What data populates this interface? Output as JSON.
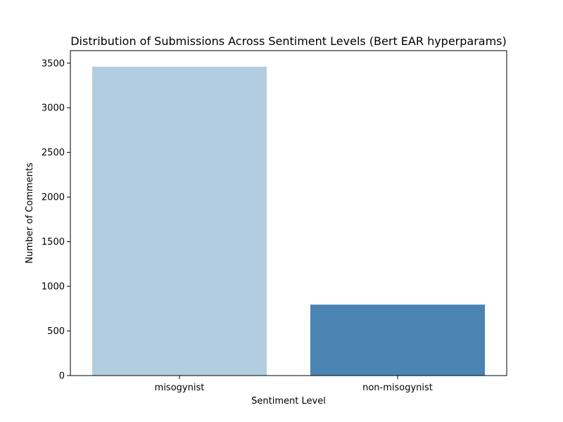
{
  "chart_data": {
    "type": "bar",
    "title": "Distribution of Submissions Across Sentiment Levels (Bert EAR hyperparams)",
    "xlabel": "Sentiment Level",
    "ylabel": "Number of Comments",
    "categories": [
      "misogynist",
      "non-misogynist"
    ],
    "values": [
      3460,
      795
    ],
    "colors": [
      "#b3cde0",
      "#4a84b3"
    ],
    "ylim": [
      0,
      3640
    ],
    "yticks": [
      0,
      500,
      1000,
      1500,
      2000,
      2500,
      3000,
      3500
    ],
    "ytick_labels": [
      "0",
      "500",
      "1000",
      "1500",
      "2000",
      "2500",
      "3000",
      "3500"
    ],
    "grid": false,
    "legend": "none"
  }
}
